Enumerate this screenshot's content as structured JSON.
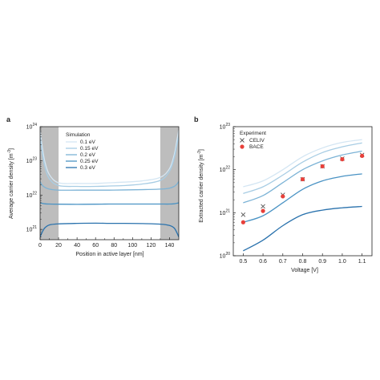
{
  "panels": [
    {
      "letter": "a",
      "xlabel": "Position in active layer [nm]",
      "ylabel": "Average carrier density [m",
      "ylabel_sup": "-3",
      "ylabel_end": "]",
      "xticks": [
        "0",
        "20",
        "40",
        "60",
        "80",
        "100",
        "120",
        "140"
      ],
      "yticks": [
        {
          "base": "10",
          "exp": "21"
        },
        {
          "base": "10",
          "exp": "22"
        },
        {
          "base": "10",
          "exp": "23"
        },
        {
          "base": "10",
          "exp": "24"
        }
      ],
      "legend_title": "Simulation",
      "legend": [
        "0.1 eV",
        "0.15 eV",
        "0.2 eV",
        "0.25 eV",
        "0.3 eV"
      ]
    },
    {
      "letter": "b",
      "xlabel": "Voltage [V]",
      "ylabel": "Extracted carrier density [m",
      "ylabel_sup": "-3",
      "ylabel_end": "]",
      "xticks": [
        "0.5",
        "0.6",
        "0.7",
        "0.8",
        "0.9",
        "1.0",
        "1.1"
      ],
      "yticks": [
        {
          "base": "10",
          "exp": "20"
        },
        {
          "base": "10",
          "exp": "21"
        },
        {
          "base": "10",
          "exp": "22"
        },
        {
          "base": "10",
          "exp": "23"
        }
      ],
      "legend_title": "Experiment",
      "legend": [
        "CELIV",
        "BACE"
      ]
    }
  ],
  "chart_data": [
    {
      "type": "line",
      "xlabel": "Position in active layer [nm]",
      "ylabel": "Average carrier density [m-3]",
      "xlim": [
        0,
        150
      ],
      "ylim": [
        5e+20,
        1e+24
      ],
      "yscale": "log",
      "shaded_regions_x": [
        [
          0,
          20
        ],
        [
          130,
          150
        ]
      ],
      "legend_title": "Simulation",
      "legend_position": "top-left",
      "colors": [
        "#d4e6f3",
        "#a8cde4",
        "#7cb3d6",
        "#4a93c4",
        "#2a72ad"
      ],
      "x": [
        0,
        2,
        5,
        10,
        20,
        40,
        60,
        75,
        90,
        110,
        130,
        140,
        145,
        148,
        150
      ],
      "series": [
        {
          "name": "0.1 eV",
          "values": [
            8e+23,
            3e+23,
            1e+23,
            4e+22,
            2.3e+22,
            2.2e+22,
            2.2e+22,
            2.3e+22,
            2.4e+22,
            2.6e+22,
            3.3e+22,
            6e+22,
            1.5e+23,
            4e+23,
            8e+23
          ]
        },
        {
          "name": "0.15 eV",
          "values": [
            5e+23,
            2e+23,
            7e+22,
            3e+22,
            1.9e+22,
            1.8e+22,
            1.8e+22,
            1.85e+22,
            1.9e+22,
            2.1e+22,
            2.7e+22,
            5e+22,
            1.2e+23,
            3e+23,
            5e+23
          ]
        },
        {
          "name": "0.2 eV",
          "values": [
            2.5e+22,
            2e+22,
            1.7e+22,
            1.5e+22,
            1.4e+22,
            1.4e+22,
            1.4e+22,
            1.4e+22,
            1.42e+22,
            1.45e+22,
            1.5e+22,
            1.6e+22,
            1.8e+22,
            2.1e+22,
            2.5e+22
          ]
        },
        {
          "name": "0.25 eV",
          "values": [
            6e+21,
            5.8e+21,
            5.6e+21,
            5.5e+21,
            5.45e+21,
            5.4e+21,
            5.45e+21,
            5.5e+21,
            5.5e+21,
            5.5e+21,
            5.5e+21,
            5.5e+21,
            5.6e+21,
            5.8e+21,
            6e+21
          ]
        },
        {
          "name": "0.3 eV",
          "values": [
            6e+20,
            8e+20,
            1.1e+21,
            1.35e+21,
            1.45e+21,
            1.5e+21,
            1.52e+21,
            1.5e+21,
            1.5e+21,
            1.48e+21,
            1.42e+21,
            1.3e+21,
            1.1e+21,
            8e+20,
            6e+20
          ]
        }
      ]
    },
    {
      "type": "line",
      "xlabel": "Voltage [V]",
      "ylabel": "Extracted carrier density [m-3]",
      "xlim": [
        0.45,
        1.15
      ],
      "ylim": [
        1e+20,
        1e+23
      ],
      "yscale": "log",
      "legend_title": "Experiment",
      "legend_position": "top-left",
      "colors": [
        "#d4e6f3",
        "#a8cde4",
        "#7cb3d6",
        "#4a93c4",
        "#2a72ad"
      ],
      "x": [
        0.5,
        0.6,
        0.7,
        0.8,
        0.9,
        1.0,
        1.1
      ],
      "series": [
        {
          "values": [
            4e+21,
            5.5e+21,
            1e+22,
            2e+22,
            3.2e+22,
            4.3e+22,
            5e+22
          ]
        },
        {
          "values": [
            2.8e+21,
            4e+21,
            7.5e+21,
            1.5e+22,
            2.5e+22,
            3.4e+22,
            4.2e+22
          ]
        },
        {
          "values": [
            1.7e+21,
            2.5e+21,
            5e+21,
            1e+22,
            1.6e+22,
            2.2e+22,
            2.7e+22
          ]
        },
        {
          "values": [
            6e+20,
            8.5e+20,
            1.7e+21,
            3.5e+21,
            5.5e+21,
            7e+21,
            8e+21
          ]
        },
        {
          "values": [
            1.3e+20,
            2.3e+20,
            5e+20,
            9e+20,
            1.15e+21,
            1.3e+21,
            1.4e+21
          ]
        }
      ],
      "scatter": [
        {
          "name": "CELIV",
          "marker": "x",
          "color": "#555555",
          "x": [
            0.5,
            0.6,
            0.7,
            0.8,
            0.9,
            1.0,
            1.1
          ],
          "values": [
            9e+20,
            1.4e+21,
            2.6e+21,
            6e+21,
            1.2e+22,
            1.8e+22,
            2.2e+22
          ]
        },
        {
          "name": "BACE",
          "marker": "o",
          "color": "#e8403a",
          "x": [
            0.5,
            0.6,
            0.7,
            0.8,
            0.9,
            1.0,
            1.1
          ],
          "values": [
            6e+20,
            1.1e+21,
            2.4e+21,
            6e+21,
            1.2e+22,
            1.75e+22,
            2.1e+22
          ]
        }
      ]
    }
  ]
}
